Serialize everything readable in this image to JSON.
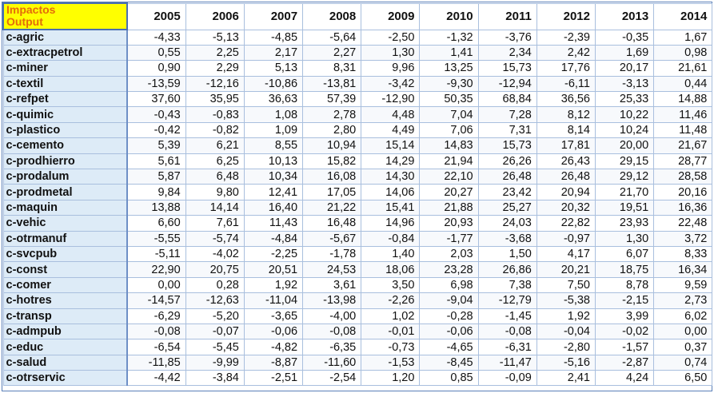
{
  "header": {
    "corner_line1": "Impactos",
    "corner_line2": "Output",
    "years": [
      "2005",
      "2006",
      "2007",
      "2008",
      "2009",
      "2010",
      "2011",
      "2012",
      "2013",
      "2014"
    ]
  },
  "rows": [
    {
      "label": "c-agric",
      "values": [
        "-4,33",
        "-5,13",
        "-4,85",
        "-5,64",
        "-2,50",
        "-1,32",
        "-3,76",
        "-2,39",
        "-0,35",
        "1,67"
      ]
    },
    {
      "label": "c-extracpetrol",
      "values": [
        "0,55",
        "2,25",
        "2,17",
        "2,27",
        "1,30",
        "1,41",
        "2,34",
        "2,42",
        "1,69",
        "0,98"
      ]
    },
    {
      "label": "c-miner",
      "values": [
        "0,90",
        "2,29",
        "5,13",
        "8,31",
        "9,96",
        "13,25",
        "15,73",
        "17,76",
        "20,17",
        "21,61"
      ]
    },
    {
      "label": "c-textil",
      "values": [
        "-13,59",
        "-12,16",
        "-10,86",
        "-13,81",
        "-3,42",
        "-9,30",
        "-12,94",
        "-6,11",
        "-3,13",
        "0,44"
      ]
    },
    {
      "label": "c-refpet",
      "values": [
        "37,60",
        "35,95",
        "36,63",
        "57,39",
        "-12,90",
        "50,35",
        "68,84",
        "36,56",
        "25,33",
        "14,88"
      ]
    },
    {
      "label": "c-quimic",
      "values": [
        "-0,43",
        "-0,83",
        "1,08",
        "2,78",
        "4,48",
        "7,04",
        "7,28",
        "8,12",
        "10,22",
        "11,46"
      ]
    },
    {
      "label": "c-plastico",
      "values": [
        "-0,42",
        "-0,82",
        "1,09",
        "2,80",
        "4,49",
        "7,06",
        "7,31",
        "8,14",
        "10,24",
        "11,48"
      ]
    },
    {
      "label": "c-cemento",
      "values": [
        "5,39",
        "6,21",
        "8,55",
        "10,94",
        "15,14",
        "14,83",
        "15,73",
        "17,81",
        "20,00",
        "21,67"
      ]
    },
    {
      "label": "c-prodhierro",
      "values": [
        "5,61",
        "6,25",
        "10,13",
        "15,82",
        "14,29",
        "21,94",
        "26,26",
        "26,43",
        "29,15",
        "28,77"
      ]
    },
    {
      "label": "c-prodalum",
      "values": [
        "5,87",
        "6,48",
        "10,34",
        "16,08",
        "14,30",
        "22,10",
        "26,48",
        "26,48",
        "29,12",
        "28,58"
      ]
    },
    {
      "label": "c-prodmetal",
      "values": [
        "9,84",
        "9,80",
        "12,41",
        "17,05",
        "14,06",
        "20,27",
        "23,42",
        "20,94",
        "21,70",
        "20,16"
      ]
    },
    {
      "label": "c-maquin",
      "values": [
        "13,88",
        "14,14",
        "16,40",
        "21,22",
        "15,41",
        "21,88",
        "25,27",
        "20,32",
        "19,51",
        "16,36"
      ]
    },
    {
      "label": "c-vehic",
      "values": [
        "6,60",
        "7,61",
        "11,43",
        "16,48",
        "14,96",
        "20,93",
        "24,03",
        "22,82",
        "23,93",
        "22,48"
      ]
    },
    {
      "label": "c-otrmanuf",
      "values": [
        "-5,55",
        "-5,74",
        "-4,84",
        "-5,67",
        "-0,84",
        "-1,77",
        "-3,68",
        "-0,97",
        "1,30",
        "3,72"
      ]
    },
    {
      "label": "c-svcpub",
      "values": [
        "-5,11",
        "-4,02",
        "-2,25",
        "-1,78",
        "1,40",
        "2,03",
        "1,50",
        "4,17",
        "6,07",
        "8,33"
      ]
    },
    {
      "label": "c-const",
      "values": [
        "22,90",
        "20,75",
        "20,51",
        "24,53",
        "18,06",
        "23,28",
        "26,86",
        "20,21",
        "18,75",
        "16,34"
      ]
    },
    {
      "label": "c-comer",
      "values": [
        "0,00",
        "0,28",
        "1,92",
        "3,61",
        "3,50",
        "6,98",
        "7,38",
        "7,50",
        "8,78",
        "9,59"
      ]
    },
    {
      "label": "c-hotres",
      "values": [
        "-14,57",
        "-12,63",
        "-11,04",
        "-13,98",
        "-2,26",
        "-9,04",
        "-12,79",
        "-5,38",
        "-2,15",
        "2,73"
      ]
    },
    {
      "label": "c-transp",
      "values": [
        "-6,29",
        "-5,20",
        "-3,65",
        "-4,00",
        "1,02",
        "-0,28",
        "-1,45",
        "1,92",
        "3,99",
        "6,02"
      ]
    },
    {
      "label": "c-admpub",
      "values": [
        "-0,08",
        "-0,07",
        "-0,06",
        "-0,08",
        "-0,01",
        "-0,06",
        "-0,08",
        "-0,04",
        "-0,02",
        "0,00"
      ]
    },
    {
      "label": "c-educ",
      "values": [
        "-6,54",
        "-5,45",
        "-4,82",
        "-6,35",
        "-0,73",
        "-4,65",
        "-6,31",
        "-2,80",
        "-1,57",
        "0,37"
      ]
    },
    {
      "label": "c-salud",
      "values": [
        "-11,85",
        "-9,99",
        "-8,87",
        "-11,60",
        "-1,53",
        "-8,45",
        "-11,47",
        "-5,16",
        "-2,87",
        "0,74"
      ]
    },
    {
      "label": "c-otrservic",
      "values": [
        "-4,42",
        "-3,84",
        "-2,51",
        "-2,54",
        "1,20",
        "0,85",
        "-0,09",
        "2,41",
        "4,24",
        "6,50"
      ]
    }
  ]
}
